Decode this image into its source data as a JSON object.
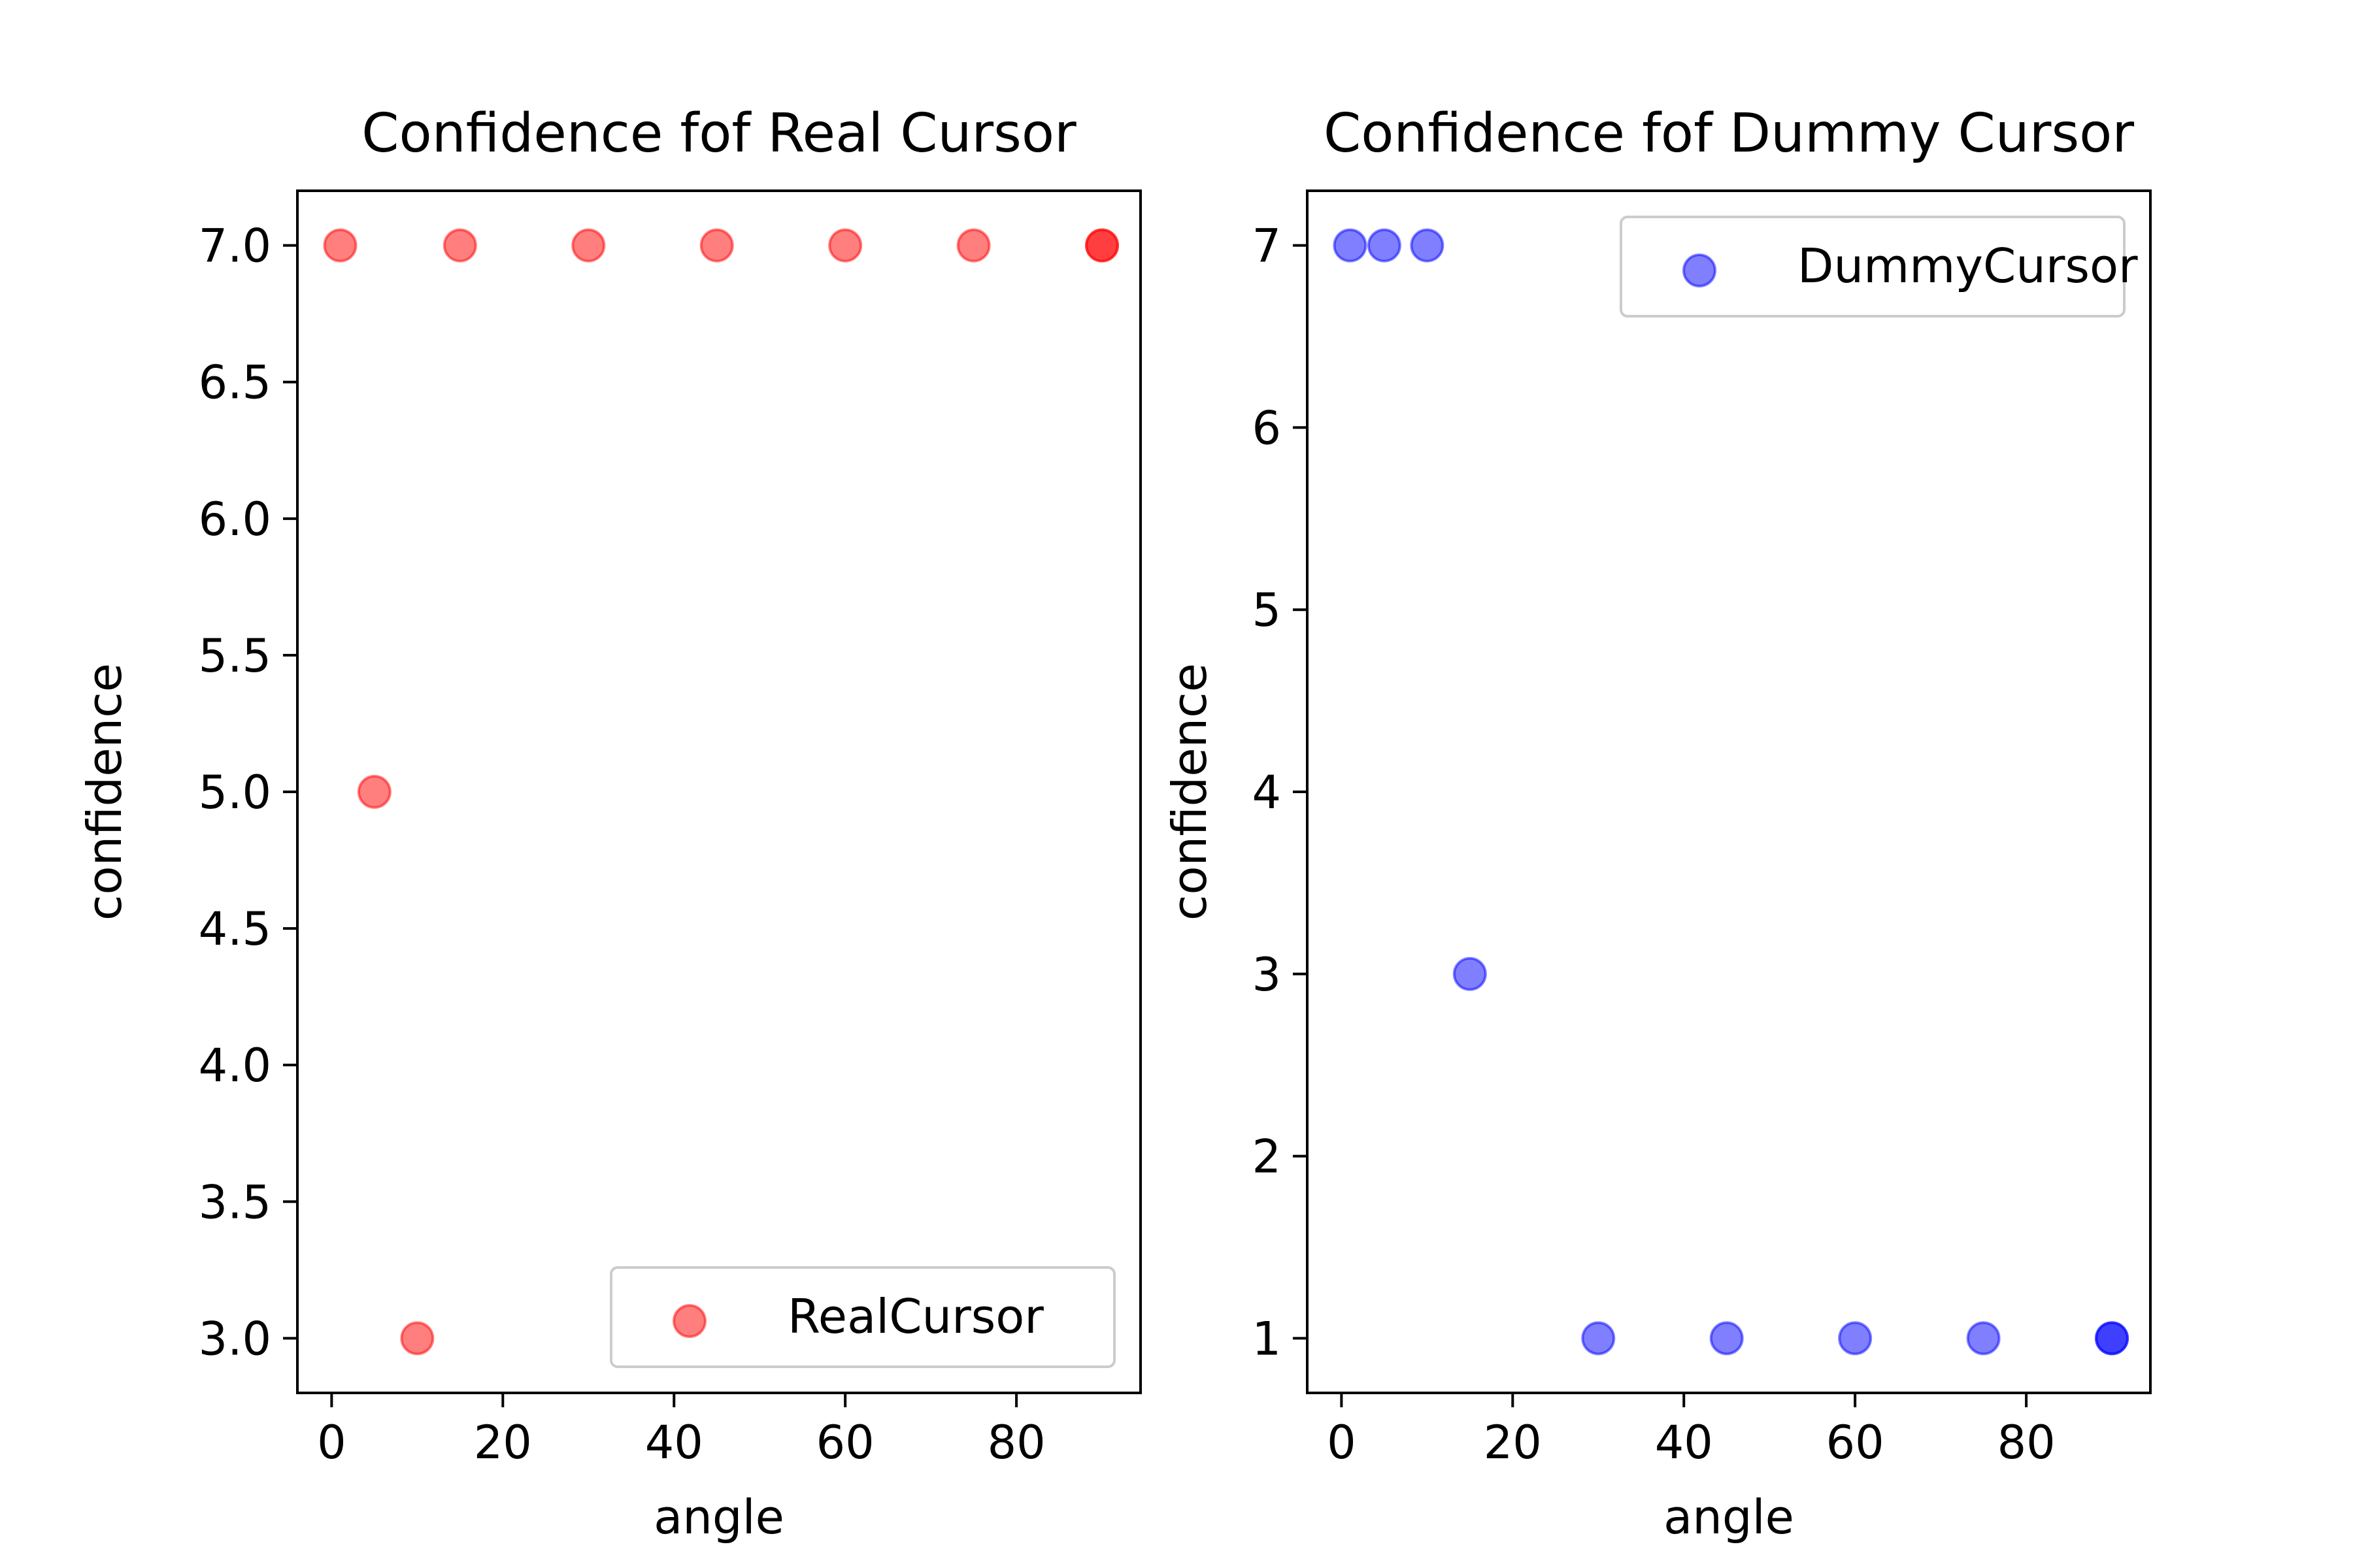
{
  "chart_data": [
    {
      "type": "scatter",
      "title": "Confidence fof Real Cursor",
      "xlabel": "angle",
      "ylabel": "confidence",
      "xlim": [
        -4,
        94.5
      ],
      "ylim": [
        2.8,
        7.2
      ],
      "xticks": [
        0,
        20,
        40,
        60,
        80
      ],
      "xtick_labels": [
        "0",
        "20",
        "40",
        "60",
        "80"
      ],
      "yticks": [
        3.0,
        3.5,
        4.0,
        4.5,
        5.0,
        5.5,
        6.0,
        6.5,
        7.0
      ],
      "ytick_labels": [
        "3.0",
        "3.5",
        "4.0",
        "4.5",
        "5.0",
        "5.5",
        "6.0",
        "6.5",
        "7.0"
      ],
      "grid": false,
      "legend_position": "lower right",
      "series": [
        {
          "name": "RealCursor",
          "color": "#ff0000",
          "alpha": 0.5,
          "x": [
            1,
            5,
            10,
            15,
            30,
            45,
            60,
            75,
            90,
            90
          ],
          "y": [
            7,
            5,
            3,
            7,
            7,
            7,
            7,
            7,
            7,
            7
          ]
        }
      ]
    },
    {
      "type": "scatter",
      "title": "Confidence fof Dummy Cursor",
      "xlabel": "angle",
      "ylabel": "confidence",
      "xlim": [
        -4,
        94.5
      ],
      "ylim": [
        0.7,
        7.3
      ],
      "xticks": [
        0,
        20,
        40,
        60,
        80
      ],
      "xtick_labels": [
        "0",
        "20",
        "40",
        "60",
        "80"
      ],
      "yticks": [
        1,
        2,
        3,
        4,
        5,
        6,
        7
      ],
      "ytick_labels": [
        "1",
        "2",
        "3",
        "4",
        "5",
        "6",
        "7"
      ],
      "grid": false,
      "legend_position": "upper right",
      "series": [
        {
          "name": "DummyCursor",
          "color": "#0000ff",
          "alpha": 0.5,
          "x": [
            1,
            5,
            10,
            15,
            30,
            45,
            60,
            75,
            90,
            90
          ],
          "y": [
            7,
            7,
            7,
            3,
            1,
            1,
            1,
            1,
            1,
            1
          ]
        }
      ]
    }
  ]
}
